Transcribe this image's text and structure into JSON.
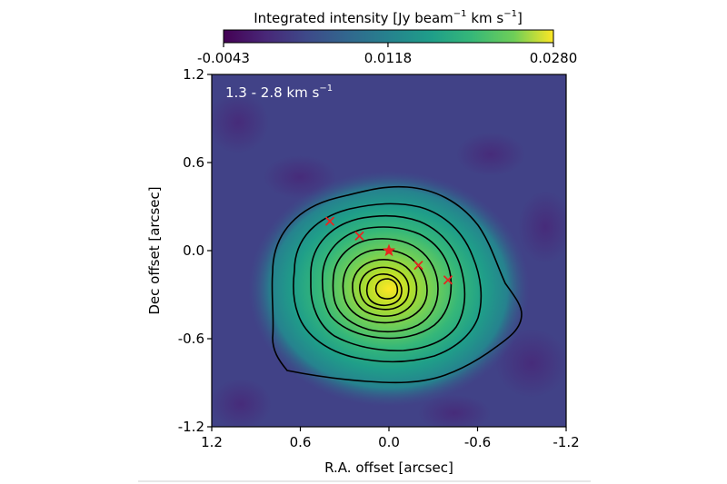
{
  "chart_data": {
    "type": "heatmap",
    "colormap": "viridis",
    "xlabel": "R.A. offset [arcsec]",
    "ylabel": "Dec offset [arcsec]",
    "xlim": [
      1.2,
      -1.2
    ],
    "ylim": [
      -1.2,
      1.2
    ],
    "x_ticks": [
      1.2,
      0.6,
      0.0,
      -0.6,
      -1.2
    ],
    "x_tick_labels": [
      "1.2",
      "0.6",
      "0.0",
      "-0.6",
      "-1.2"
    ],
    "y_ticks": [
      1.2,
      0.6,
      0.0,
      -0.6,
      -1.2
    ],
    "y_tick_labels": [
      "1.2",
      "0.6",
      "0.0",
      "-0.6",
      "-1.2"
    ],
    "panel_label": {
      "text": "1.3 - 2.8 km s",
      "superscript": "−1"
    },
    "colorbar": {
      "title_parts": [
        "Integrated intensity [Jy beam",
        "−1",
        " km s",
        "−1",
        "]"
      ],
      "vmin": -0.0043,
      "vmax": 0.028,
      "ticks": [
        -0.0043,
        0.0118,
        0.028
      ],
      "tick_labels": [
        "-0.0043",
        "0.0118",
        "0.0280"
      ]
    },
    "emission_peak": {
      "x": 0.0,
      "y": -0.27,
      "value": 0.028
    },
    "contour_levels": 10,
    "markers": [
      {
        "type": "star",
        "x": 0.0,
        "y": 0.0,
        "color": "#e8251f"
      },
      {
        "type": "cross",
        "x": 0.4,
        "y": 0.2,
        "color": "#e8251f"
      },
      {
        "type": "cross",
        "x": 0.2,
        "y": 0.1,
        "color": "#e8251f"
      },
      {
        "type": "cross",
        "x": -0.2,
        "y": -0.1,
        "color": "#e8251f"
      },
      {
        "type": "cross",
        "x": -0.4,
        "y": -0.2,
        "color": "#e8251f"
      }
    ]
  }
}
